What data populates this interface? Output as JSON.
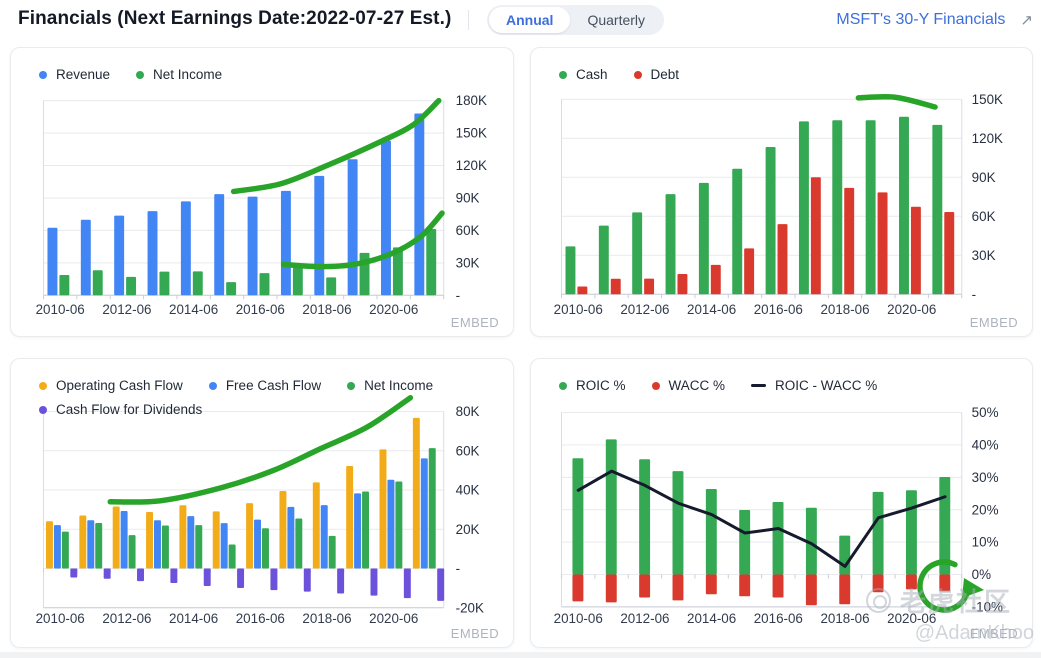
{
  "header": {
    "title": "Financials (Next Earnings Date:2022-07-27 Est.)",
    "period_toggle": {
      "options": [
        "Annual",
        "Quarterly"
      ],
      "selected": "Annual"
    },
    "link": {
      "label": "MSFT's 30-Y Financials",
      "icon": "↗"
    }
  },
  "embed_label": "EMBED",
  "watermark": {
    "community": "老虎社区",
    "handle": "@AdamKhoo"
  },
  "colors": {
    "accent_blue": "#4285F4",
    "accent_green": "#34A853",
    "accent_red": "#D93A2D",
    "accent_yellow": "#F3AC19",
    "accent_purple": "#6C51DA",
    "trend_green": "#28A428",
    "line_black": "#151A2D",
    "link_blue": "#3E6FD9"
  },
  "chart_data": [
    {
      "id": "revenue-net-income",
      "type": "bar",
      "unit": "thousand millions USD (K)",
      "categories": [
        "2010-06",
        "2011-06",
        "2012-06",
        "2013-06",
        "2014-06",
        "2015-06",
        "2016-06",
        "2017-06",
        "2018-06",
        "2019-06",
        "2020-06",
        "2021-06"
      ],
      "x_label_step": 2,
      "ylim": [
        0,
        186
      ],
      "y_ticks": [
        {
          "value": 180,
          "label": "180K"
        },
        {
          "value": 150,
          "label": "150K"
        },
        {
          "value": 120,
          "label": "120K"
        },
        {
          "value": 90,
          "label": "90K"
        },
        {
          "value": 60,
          "label": "60K"
        },
        {
          "value": 30,
          "label": "30K"
        },
        {
          "value": 0,
          "label": "-"
        }
      ],
      "series": [
        {
          "name": "Revenue",
          "color": "#4285F4",
          "render": "bar",
          "marker": "dot",
          "values": [
            62.5,
            69.9,
            73.7,
            77.8,
            86.8,
            93.6,
            91.2,
            96.6,
            110.4,
            125.8,
            143.0,
            168.1
          ]
        },
        {
          "name": "Net Income",
          "color": "#34A853",
          "render": "bar",
          "marker": "dot",
          "values": [
            18.8,
            23.2,
            17.0,
            21.9,
            22.1,
            12.2,
            20.5,
            25.5,
            16.6,
            39.2,
            44.3,
            61.3
          ]
        }
      ],
      "trend_lines": [
        {
          "name": "Revenue trend",
          "color": "#28A428",
          "points": [
            [
              5.2,
              96
            ],
            [
              6.6,
              103
            ],
            [
              8.0,
              120
            ],
            [
              9.6,
              142
            ],
            [
              10.6,
              158
            ],
            [
              11.35,
              180
            ]
          ]
        },
        {
          "name": "Net Income trend",
          "color": "#28A428",
          "points": [
            [
              6.7,
              28.5
            ],
            [
              7.8,
              26.5
            ],
            [
              8.8,
              28.5
            ],
            [
              9.9,
              38
            ],
            [
              10.8,
              54
            ],
            [
              11.45,
              76
            ]
          ]
        }
      ]
    },
    {
      "id": "cash-debt",
      "type": "bar",
      "unit": "thousand millions USD (K)",
      "categories": [
        "2010-06",
        "2011-06",
        "2012-06",
        "2013-06",
        "2014-06",
        "2015-06",
        "2016-06",
        "2017-06",
        "2018-06",
        "2019-06",
        "2020-06",
        "2021-06"
      ],
      "x_label_step": 2,
      "ylim": [
        0,
        155
      ],
      "y_ticks": [
        {
          "value": 150,
          "label": "150K"
        },
        {
          "value": 120,
          "label": "120K"
        },
        {
          "value": 90,
          "label": "90K"
        },
        {
          "value": 60,
          "label": "60K"
        },
        {
          "value": 30,
          "label": "30K"
        },
        {
          "value": 0,
          "label": "-"
        }
      ],
      "series": [
        {
          "name": "Cash",
          "color": "#34A853",
          "render": "bar",
          "marker": "dot",
          "values": [
            36.8,
            52.8,
            63.0,
            77.0,
            85.7,
            96.5,
            113.2,
            132.9,
            133.8,
            133.8,
            136.5,
            130.3
          ]
        },
        {
          "name": "Debt",
          "color": "#D93A2D",
          "render": "bar",
          "marker": "dot",
          "values": [
            6.0,
            11.9,
            12.0,
            15.6,
            22.6,
            35.3,
            53.9,
            90.0,
            81.8,
            78.4,
            67.3,
            63.3
          ]
        }
      ],
      "trend_lines": [
        {
          "name": "Cash trend",
          "color": "#28A428",
          "points": [
            [
              8.4,
              151
            ],
            [
              9.5,
              151.5
            ],
            [
              10.7,
              144
            ]
          ]
        }
      ]
    },
    {
      "id": "cash-flows",
      "type": "bar",
      "unit": "thousand millions USD (K)",
      "categories": [
        "2010-06",
        "2011-06",
        "2012-06",
        "2013-06",
        "2014-06",
        "2015-06",
        "2016-06",
        "2017-06",
        "2018-06",
        "2019-06",
        "2020-06",
        "2021-06"
      ],
      "x_label_step": 2,
      "ylim": [
        -20,
        88
      ],
      "y_ticks": [
        {
          "value": 80,
          "label": "80K"
        },
        {
          "value": 60,
          "label": "60K"
        },
        {
          "value": 40,
          "label": "40K"
        },
        {
          "value": 20,
          "label": "20K"
        },
        {
          "value": 0,
          "label": "-"
        },
        {
          "value": -20,
          "label": "-20K"
        }
      ],
      "series": [
        {
          "name": "Operating Cash Flow",
          "color": "#F3AC19",
          "render": "bar",
          "marker": "dot",
          "values": [
            24.1,
            27.0,
            31.6,
            28.8,
            32.2,
            29.1,
            33.3,
            39.5,
            43.9,
            52.2,
            60.7,
            76.7
          ]
        },
        {
          "name": "Free Cash Flow",
          "color": "#4285F4",
          "render": "bar",
          "marker": "dot",
          "values": [
            22.1,
            24.6,
            29.3,
            24.6,
            26.7,
            23.1,
            24.9,
            31.4,
            32.3,
            38.3,
            45.2,
            56.1
          ]
        },
        {
          "name": "Net Income",
          "color": "#34A853",
          "render": "bar",
          "marker": "dot",
          "values": [
            18.8,
            23.2,
            17.0,
            21.9,
            22.1,
            12.2,
            20.5,
            25.5,
            16.6,
            39.2,
            44.3,
            61.3
          ]
        },
        {
          "name": "Cash Flow for Dividends",
          "color": "#6C51DA",
          "render": "bar",
          "marker": "dot",
          "values": [
            -4.6,
            -5.2,
            -6.4,
            -7.4,
            -8.9,
            -9.9,
            -11.0,
            -11.8,
            -12.7,
            -13.8,
            -15.1,
            -16.5
          ]
        }
      ],
      "trend_lines": [
        {
          "name": "Cash flow trend",
          "color": "#28A428",
          "points": [
            [
              1.5,
              34
            ],
            [
              3.0,
              34.5
            ],
            [
              4.8,
              41
            ],
            [
              6.4,
              50
            ],
            [
              7.8,
              61
            ],
            [
              9.2,
              72
            ],
            [
              10.5,
              87
            ]
          ]
        }
      ]
    },
    {
      "id": "roic-wacc",
      "type": "bar",
      "unit": "percent",
      "categories": [
        "2010-06",
        "2011-06",
        "2012-06",
        "2013-06",
        "2014-06",
        "2015-06",
        "2016-06",
        "2017-06",
        "2018-06",
        "2019-06",
        "2020-06",
        "2021-06"
      ],
      "x_label_step": 2,
      "ylim": [
        -10,
        52
      ],
      "y_ticks": [
        {
          "value": 50,
          "label": "50%"
        },
        {
          "value": 40,
          "label": "40%"
        },
        {
          "value": 30,
          "label": "30%"
        },
        {
          "value": 20,
          "label": "20%"
        },
        {
          "value": 10,
          "label": "10%"
        },
        {
          "value": 0,
          "label": "0%"
        },
        {
          "value": -10,
          "label": "-10%"
        }
      ],
      "series": [
        {
          "name": "ROIC %",
          "color": "#34A853",
          "render": "bar",
          "marker": "dot",
          "values": [
            35.9,
            41.7,
            35.6,
            31.9,
            26.4,
            19.9,
            22.4,
            20.6,
            12.0,
            25.5,
            26.0,
            30.1
          ]
        },
        {
          "name": "WACC %",
          "color": "#D93A2D",
          "render": "bar",
          "marker": "dot",
          "plotted_below_zero": true,
          "values": [
            -8.3,
            -8.6,
            -7.1,
            -8.0,
            -6.1,
            -6.7,
            -7.1,
            -9.5,
            -9.2,
            -5.5,
            -4.6,
            -5.2
          ]
        },
        {
          "name": "ROIC - WACC %",
          "color": "#151A2D",
          "render": "line",
          "marker": "dash",
          "values": [
            26.0,
            31.9,
            27.5,
            22.0,
            18.5,
            12.8,
            14.2,
            9.5,
            2.5,
            17.5,
            20.5,
            24.0
          ]
        }
      ],
      "trend_lines": [],
      "annotation": {
        "shape": "circled-arrow",
        "color": "#28A428",
        "near_category": "2021-06"
      }
    }
  ]
}
